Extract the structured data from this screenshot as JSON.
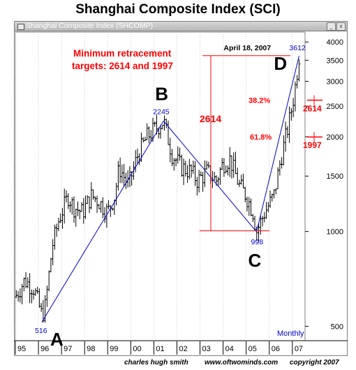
{
  "page_title": "Shanghai Composite Index (SCI)",
  "window": {
    "title": "Shanghai Composite Index (SHCOMP)",
    "min_label": "_",
    "close_label": "x"
  },
  "footer": {
    "author": "charles hugh smith",
    "site": "www.oftwominds.com",
    "copyright": "copyright  2007"
  },
  "colors": {
    "annotation_red": "#ff0000",
    "trend_blue": "#0000cc",
    "bars": "#000000"
  },
  "chart_data": {
    "type": "ohlc",
    "scale": "log",
    "ylim": [
      450,
      4300
    ],
    "x_period": "Monthly",
    "period_label": "Monthly",
    "x_range": [
      1995.0,
      2007.55
    ],
    "x_ticks": [
      {
        "label": "95",
        "x": 1995
      },
      {
        "label": "96",
        "x": 1996
      },
      {
        "label": "97",
        "x": 1997
      },
      {
        "label": "98",
        "x": 1998
      },
      {
        "label": "99",
        "x": 1999
      },
      {
        "label": "00",
        "x": 2000
      },
      {
        "label": "01",
        "x": 2001
      },
      {
        "label": "02",
        "x": 2002
      },
      {
        "label": "03",
        "x": 2003
      },
      {
        "label": "04",
        "x": 2004
      },
      {
        "label": "05",
        "x": 2005
      },
      {
        "label": "06",
        "x": 2006
      },
      {
        "label": "07",
        "x": 2007
      }
    ],
    "y_ticks": [
      500,
      1000,
      1500,
      2000,
      2500,
      3000,
      3500,
      4000
    ],
    "price_path": [
      [
        1995.0,
        620
      ],
      [
        1995.4,
        700
      ],
      [
        1995.8,
        660
      ],
      [
        1996.15,
        540
      ],
      [
        1996.3,
        580
      ],
      [
        1996.6,
        900
      ],
      [
        1996.9,
        1100
      ],
      [
        1997.3,
        1300
      ],
      [
        1997.5,
        1200
      ],
      [
        1997.9,
        1150
      ],
      [
        1998.3,
        1300
      ],
      [
        1998.6,
        1250
      ],
      [
        1999.0,
        1150
      ],
      [
        1999.3,
        1300
      ],
      [
        1999.5,
        1600
      ],
      [
        1999.9,
        1400
      ],
      [
        2000.3,
        1750
      ],
      [
        2000.7,
        2000
      ],
      [
        2001.0,
        2100
      ],
      [
        2001.42,
        2245
      ],
      [
        2001.8,
        1750
      ],
      [
        2002.2,
        1600
      ],
      [
        2002.6,
        1550
      ],
      [
        2002.9,
        1450
      ],
      [
        2003.3,
        1550
      ],
      [
        2003.7,
        1450
      ],
      [
        2004.0,
        1650
      ],
      [
        2004.3,
        1700
      ],
      [
        2004.7,
        1400
      ],
      [
        2005.0,
        1300
      ],
      [
        2005.3,
        1150
      ],
      [
        2005.45,
        1000
      ],
      [
        2005.8,
        1150
      ],
      [
        2006.2,
        1300
      ],
      [
        2006.5,
        1700
      ],
      [
        2006.9,
        2300
      ],
      [
        2007.1,
        2800
      ],
      [
        2007.29,
        3612
      ]
    ],
    "pivots": [
      {
        "point": "A",
        "x": 1996.15,
        "y": 516,
        "value_label": "516"
      },
      {
        "point": "B",
        "x": 2001.42,
        "y": 2245,
        "value_label": "2245"
      },
      {
        "point": "C",
        "x": 2005.45,
        "y": 998,
        "value_label": "998"
      },
      {
        "point": "D",
        "x": 2007.29,
        "y": 3612,
        "value_label": "3612"
      }
    ],
    "d_date_label": "April 18, 2007",
    "annotations": {
      "retracement_text_line1": "Minimum retracement",
      "retracement_text_line2": "targets: 2614 and 1997",
      "span_label": "2614",
      "span_low": 1005,
      "span_high": 3619,
      "fib_38": {
        "label": "38.2%",
        "level": 2614,
        "level_label": "2614"
      },
      "fib_61": {
        "label": "61.8%",
        "level": 1997,
        "level_label": "1997"
      }
    }
  }
}
